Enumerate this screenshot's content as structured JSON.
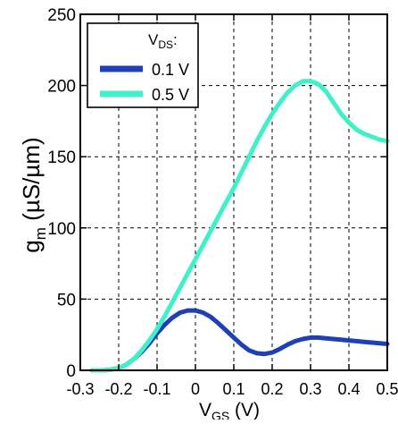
{
  "chart_data": {
    "type": "line",
    "title": "",
    "xlabel_main": "V",
    "xlabel_sub": "GS",
    "xlabel_unit": " (V)",
    "ylabel_main": "g",
    "ylabel_sub": "m",
    "ylabel_unit": " (µS/µm)",
    "xlim": [
      -0.3,
      0.5
    ],
    "ylim": [
      0,
      250
    ],
    "xticks": [
      -0.3,
      -0.2,
      -0.1,
      0,
      0.1,
      0.2,
      0.3,
      0.4,
      0.5
    ],
    "xtick_labels": [
      "-0.3",
      "-0.2",
      "-0.1",
      "0",
      "0.1",
      "0.2",
      "0.3",
      "0.4",
      "0.5"
    ],
    "yticks": [
      0,
      50,
      100,
      150,
      200,
      250
    ],
    "ytick_labels": [
      "0",
      "50",
      "100",
      "150",
      "200",
      "250"
    ],
    "grid": true,
    "legend": {
      "placement": "top-left",
      "title_main": "V",
      "title_sub": "DS",
      "title_suffix": ":"
    },
    "series": [
      {
        "name": "0.1 V",
        "color": "#1f3fb4",
        "x": [
          -0.27,
          -0.24,
          -0.22,
          -0.2,
          -0.18,
          -0.16,
          -0.14,
          -0.12,
          -0.1,
          -0.08,
          -0.06,
          -0.04,
          -0.02,
          0.0,
          0.02,
          0.04,
          0.06,
          0.08,
          0.1,
          0.12,
          0.14,
          0.16,
          0.18,
          0.2,
          0.22,
          0.24,
          0.26,
          0.28,
          0.3,
          0.32,
          0.34,
          0.36,
          0.38,
          0.4,
          0.42,
          0.44,
          0.46,
          0.48,
          0.5
        ],
        "y": [
          0,
          0,
          0.5,
          1.5,
          4,
          8,
          13,
          19,
          26,
          32,
          37,
          40.5,
          42,
          42,
          40.5,
          37.5,
          33,
          28,
          23,
          18,
          14,
          12,
          11.5,
          12.5,
          15,
          18,
          20.5,
          22,
          23,
          23,
          22.5,
          22,
          21.5,
          21,
          20.5,
          20,
          19.5,
          19,
          18.5
        ]
      },
      {
        "name": "0.5 V",
        "color": "#3ff0c8",
        "x": [
          -0.27,
          -0.24,
          -0.22,
          -0.2,
          -0.18,
          -0.16,
          -0.14,
          -0.12,
          -0.1,
          -0.08,
          -0.06,
          -0.04,
          -0.02,
          0.0,
          0.02,
          0.04,
          0.06,
          0.08,
          0.1,
          0.12,
          0.14,
          0.16,
          0.18,
          0.2,
          0.22,
          0.24,
          0.26,
          0.28,
          0.3,
          0.32,
          0.34,
          0.36,
          0.38,
          0.4,
          0.42,
          0.44,
          0.46,
          0.48,
          0.5
        ],
        "y": [
          0,
          0,
          0.5,
          1.5,
          4,
          8,
          14,
          21,
          29,
          38,
          48,
          58,
          68,
          78,
          88,
          98,
          108,
          118,
          128,
          139,
          150,
          161,
          171,
          180,
          188,
          195,
          200,
          203,
          203,
          201,
          196,
          188,
          180,
          174,
          169,
          166,
          164,
          162,
          161
        ]
      }
    ]
  }
}
